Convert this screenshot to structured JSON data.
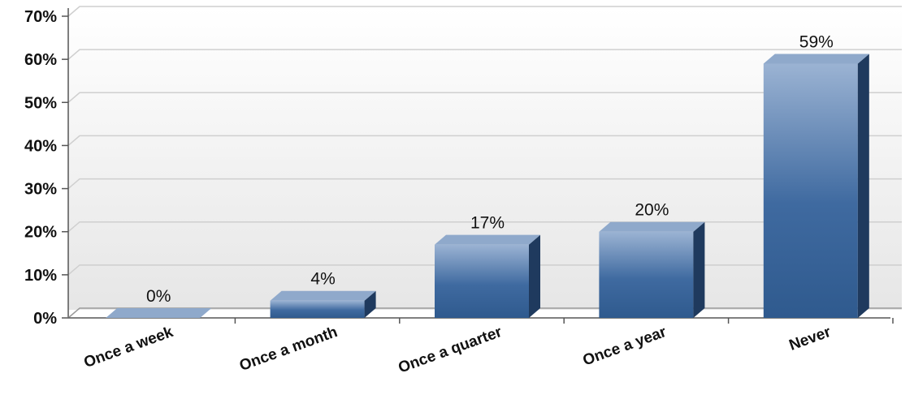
{
  "chart_data": {
    "type": "bar",
    "categories": [
      "Once a week",
      "Once a month",
      "Once a quarter",
      "Once a year",
      "Never"
    ],
    "values": [
      0,
      4,
      17,
      20,
      59
    ],
    "data_labels": [
      "0%",
      "4%",
      "17%",
      "20%",
      "59%"
    ],
    "yticks": [
      "0%",
      "10%",
      "20%",
      "30%",
      "40%",
      "50%",
      "60%",
      "70%"
    ],
    "ylim": [
      0,
      70
    ],
    "grid": true,
    "bar_style": "3d",
    "colors": {
      "bar_top": "#8fa9cb",
      "bar_front_light": "#9bb3d3",
      "bar_front_dark": "#2f5a8e",
      "bar_side": "#1f3a5e",
      "grid": "#cfcfcf"
    }
  }
}
